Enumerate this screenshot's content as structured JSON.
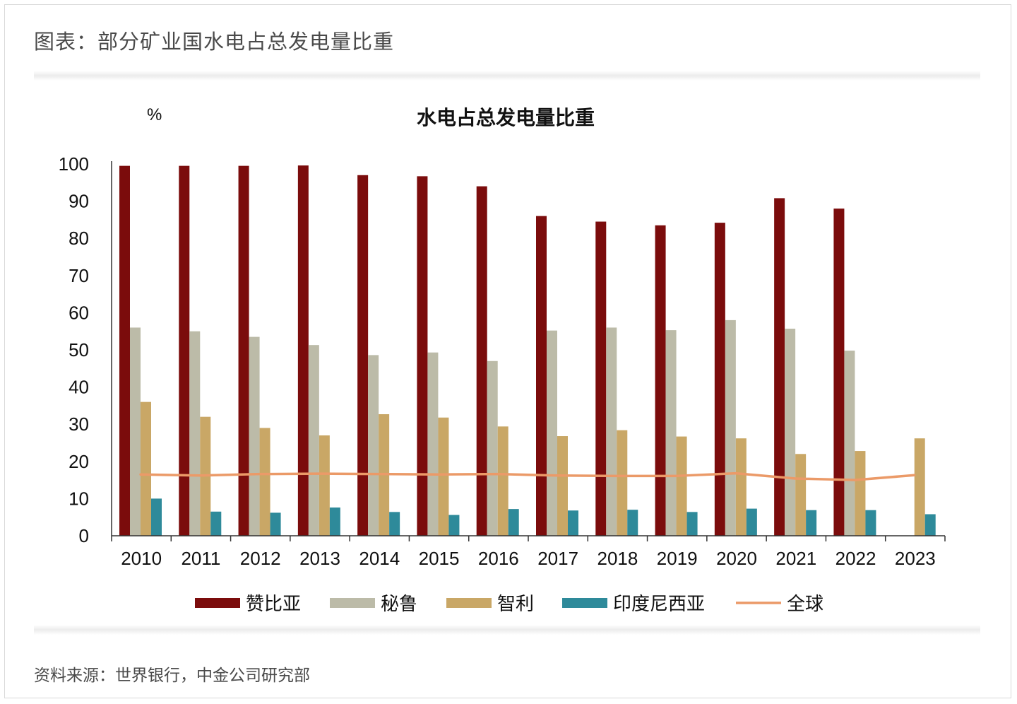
{
  "figure_title": "图表：部分矿业国水电占总发电量比重",
  "source_note": "资料来源：世界银行，中金公司研究部",
  "chart_data": {
    "type": "bar",
    "title": "水电占总发电量比重",
    "ylabel": "%",
    "ylim": [
      0,
      100
    ],
    "yticks": [
      0,
      10,
      20,
      30,
      40,
      50,
      60,
      70,
      80,
      90,
      100
    ],
    "categories": [
      "2010",
      "2011",
      "2012",
      "2013",
      "2014",
      "2015",
      "2016",
      "2017",
      "2018",
      "2019",
      "2020",
      "2021",
      "2022",
      "2023"
    ],
    "series": [
      {
        "name": "赞比亚",
        "type": "bar",
        "color": "#7b0c0c",
        "values": [
          99.5,
          99.5,
          99.5,
          99.6,
          97,
          96.7,
          94,
          86,
          84.5,
          83.5,
          84.2,
          90.8,
          88,
          null
        ]
      },
      {
        "name": "秘鲁",
        "type": "bar",
        "color": "#bcbba8",
        "values": [
          56,
          55,
          53.5,
          51.3,
          48.6,
          49.3,
          47,
          55.2,
          56,
          55.3,
          58,
          55.7,
          49.8,
          null
        ]
      },
      {
        "name": "智利",
        "type": "bar",
        "color": "#c9a766",
        "values": [
          36,
          32,
          29,
          27,
          32.7,
          31.8,
          29.4,
          26.8,
          28.4,
          26.7,
          26.2,
          22,
          22.8,
          26.2
        ]
      },
      {
        "name": "印度尼西亚",
        "type": "bar",
        "color": "#2e8a9a",
        "values": [
          10,
          6.5,
          6.2,
          7.6,
          6.4,
          5.6,
          7.2,
          6.8,
          7,
          6.4,
          7.3,
          6.9,
          6.9,
          5.8
        ]
      },
      {
        "name": "全球",
        "type": "line",
        "color": "#eb9a68",
        "values": [
          16.5,
          16.2,
          16.6,
          16.7,
          16.6,
          16.5,
          16.6,
          16.2,
          16.1,
          16.1,
          16.8,
          15.4,
          15,
          16.3
        ]
      }
    ],
    "legend": "bottom",
    "grid": false
  }
}
